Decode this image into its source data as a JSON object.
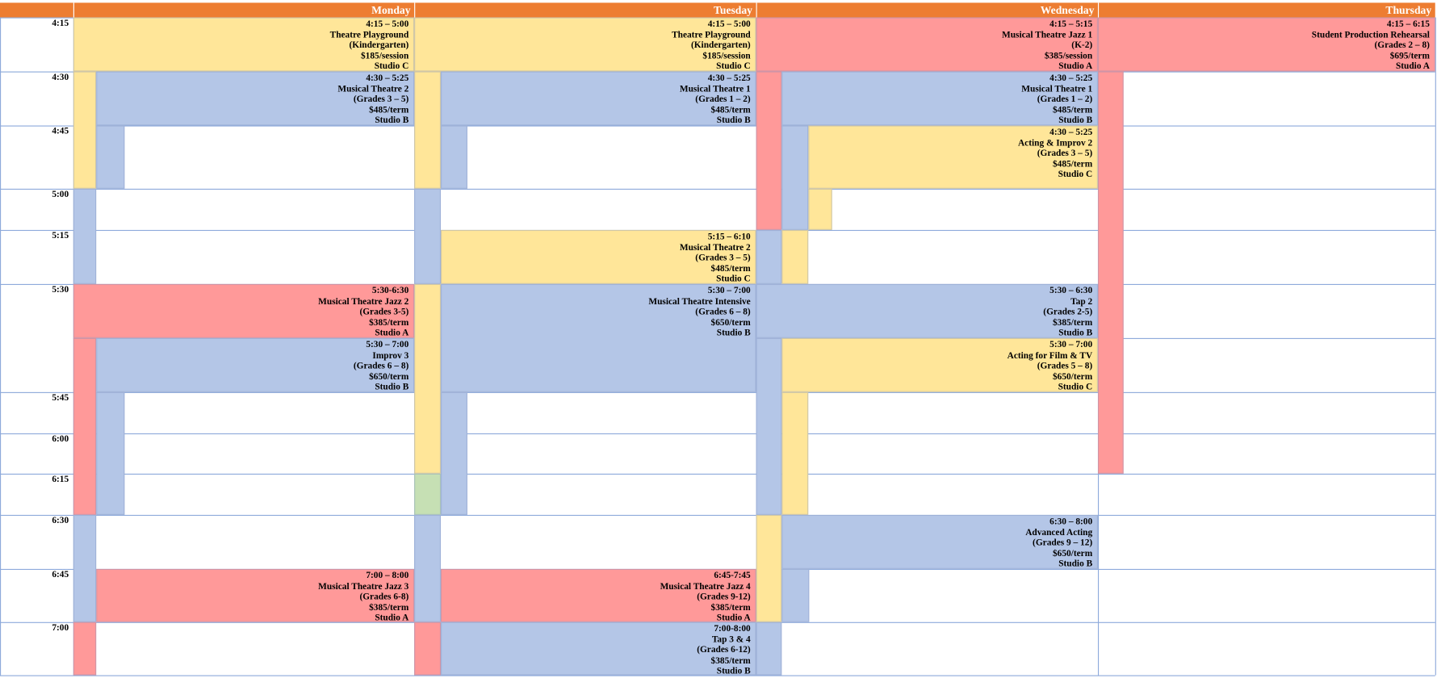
{
  "header": {
    "days": [
      "Monday",
      "Tuesday",
      "Wednesday",
      "Thursday"
    ]
  },
  "times": [
    "4:15",
    "4:30",
    "4:45",
    "5:00",
    "5:15",
    "5:30",
    "5:45",
    "6:00",
    "6:15",
    "6:30",
    "6:45",
    "7:00"
  ],
  "classes": [
    {
      "lines": [
        "4:15 – 5:00",
        "Theatre Playground",
        "(Kindergarten)",
        "$185/session",
        "Studio C"
      ]
    },
    {
      "lines": [
        "4:30 – 5:25",
        "Musical Theatre 2",
        "(Grades 3 – 5)",
        "$485/term",
        "Studio B"
      ]
    },
    {
      "lines": [
        "5:30-6:30",
        "Musical Theatre Jazz 2",
        "(Grades 3-5)",
        "$385/term",
        "Studio A"
      ]
    },
    {
      "lines": [
        "5:30 – 7:00",
        "Improv 3",
        "(Grades 6 – 8)",
        "$650/term",
        "Studio B"
      ]
    },
    {
      "lines": [
        "7:00 – 8:00",
        "Musical Theatre Jazz 3",
        "(Grades 6-8)",
        "$385/term",
        "Studio A"
      ]
    },
    {
      "lines": [
        "4:15 – 5:00",
        "Theatre Playground",
        "(Kindergarten)",
        "$185/session",
        "Studio C"
      ]
    },
    {
      "lines": [
        "4:30 – 5:25",
        "Musical Theatre 1",
        "(Grades 1 – 2)",
        "$485/term",
        "Studio B"
      ]
    },
    {
      "lines": [
        "5:15 – 6:10",
        "Musical Theatre 2",
        "(Grades 3 – 5)",
        "$485/term",
        "Studio C"
      ]
    },
    {
      "lines": [
        "5:30 – 7:00",
        "Musical Theatre Intensive",
        "(Grades 6 – 8)",
        "$650/term",
        "Studio B"
      ]
    },
    {
      "lines": [
        "6:45-7:45",
        "Musical Theatre Jazz 4",
        "(Grades 9-12)",
        "$385/term",
        "Studio A"
      ]
    },
    {
      "lines": [
        "7:00-8:00",
        "Tap 3 & 4",
        "(Grades 6-12)",
        "$385/term",
        "Studio B"
      ]
    },
    {
      "lines": [
        "4:15 – 5:15",
        "Musical Theatre Jazz 1",
        "(K-2)",
        "$385/session",
        "Studio A"
      ]
    },
    {
      "lines": [
        "4:30 – 5:25",
        "Musical Theatre 1",
        "(Grades 1 – 2)",
        "$485/term",
        "Studio B"
      ]
    },
    {
      "lines": [
        "4:30 – 5:25",
        "Acting & Improv 2",
        "(Grades 3 – 5)",
        "$485/term",
        "Studio C"
      ]
    },
    {
      "lines": [
        "5:30 – 6:30",
        "Tap 2",
        "(Grades 2-5)",
        "$385/term",
        "Studio B"
      ]
    },
    {
      "lines": [
        "5:30 – 7:00",
        "Acting for Film & TV",
        "(Grades 5 – 8)",
        "$650/term",
        "Studio C"
      ]
    },
    {
      "lines": [
        "6:30 – 8:00",
        "Advanced Acting",
        "(Grades 9 – 12)",
        "$650/term",
        "Studio B"
      ]
    },
    {
      "lines": [
        "4:15 – 6:15",
        "Student Production Rehearsal",
        "(Grades 2 – 8)",
        "$695/term",
        "Studio A"
      ]
    }
  ]
}
